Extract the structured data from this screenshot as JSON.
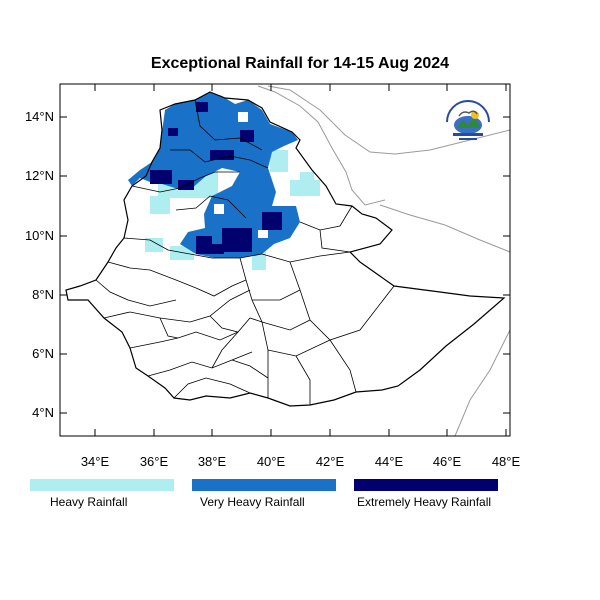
{
  "title": "Exceptional Rainfall for 14-15 Aug 2024",
  "axes": {
    "lat_ticks": [
      "14°N",
      "12°N",
      "10°N",
      "8°N",
      "6°N",
      "4°N"
    ],
    "lon_ticks": [
      "34°E",
      "36°E",
      "38°E",
      "40°E",
      "42°E",
      "44°E",
      "46°E",
      "48°E"
    ],
    "lon_range": [
      32.8,
      48.2
    ],
    "lat_range": [
      3.2,
      15.0
    ]
  },
  "legend": [
    {
      "label": "Heavy Rainfall",
      "color": "#aeeef0"
    },
    {
      "label": "Very Heavy Rainfall",
      "color": "#1a72c8"
    },
    {
      "label": "Extremely Heavy Rainfall",
      "color": "#00006e"
    }
  ],
  "logo": {
    "icon": "ethiopian-meteorology-institute-logo",
    "text": "ETHIOPIAN METEOROLOGY INSTITUTE"
  }
}
